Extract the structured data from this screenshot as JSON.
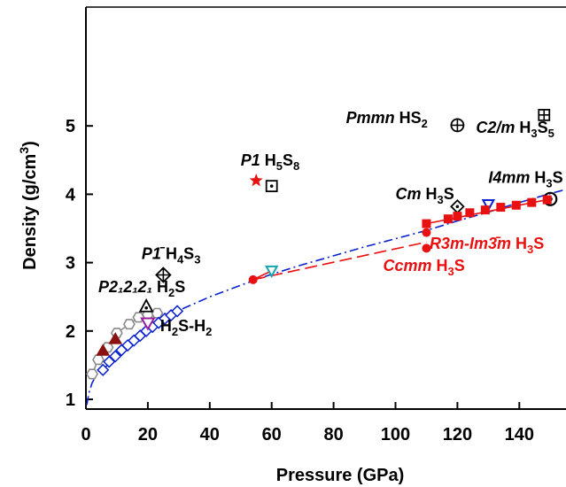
{
  "chart_data": {
    "type": "scatter",
    "title": "",
    "xlabel": "Pressure (GPa)",
    "ylabel_main": "Density (g/cm",
    "ylabel_sup": "3",
    "ylabel_close": ")",
    "xlim": [
      0,
      155
    ],
    "ylim": [
      0.9,
      5.35
    ],
    "x_ticks": [
      0,
      20,
      40,
      60,
      80,
      100,
      120,
      140
    ],
    "y_ticks": [
      1,
      2,
      3,
      4,
      5
    ],
    "grid": false,
    "legend": "none",
    "series": [
      {
        "name": "",
        "marker": "hexagon",
        "color": "#8a8a8a",
        "points": [
          [
            2,
            1.37
          ],
          [
            4,
            1.58
          ],
          [
            7,
            1.76
          ],
          [
            10,
            1.97
          ],
          [
            14,
            2.1
          ],
          [
            17,
            2.2
          ],
          [
            20,
            2.24
          ],
          [
            23,
            2.26
          ]
        ]
      },
      {
        "name": "",
        "marker": "diamond",
        "color": "#0a22d0",
        "points": [
          [
            5.5,
            1.43
          ],
          [
            7.5,
            1.55
          ],
          [
            9.5,
            1.63
          ],
          [
            11.5,
            1.72
          ],
          [
            13.5,
            1.79
          ],
          [
            15.5,
            1.86
          ],
          [
            17.5,
            1.93
          ],
          [
            19.5,
            2.0
          ],
          [
            21.5,
            2.06
          ],
          [
            23.5,
            2.12
          ],
          [
            25.5,
            2.18
          ],
          [
            27.5,
            2.23
          ],
          [
            29.5,
            2.29
          ]
        ]
      },
      {
        "name": "",
        "marker": "triangle",
        "color": "#8b1010",
        "points": [
          [
            5.5,
            1.71
          ],
          [
            9.5,
            1.88
          ]
        ]
      },
      {
        "name": "",
        "marker": "triangle-down",
        "color": "#9a1aa0",
        "points": [
          [
            20,
            2.12
          ]
        ]
      },
      {
        "name": "",
        "marker": "triangle-dot",
        "color": "#000000",
        "points": [
          [
            19.5,
            2.35
          ]
        ]
      },
      {
        "name": "",
        "marker": "diamond-plus",
        "color": "#000000",
        "points": [
          [
            25,
            2.82
          ]
        ]
      },
      {
        "name": "",
        "marker": "star",
        "color": "#e81010",
        "points": [
          [
            55,
            4.2
          ]
        ]
      },
      {
        "name": "",
        "marker": "square-dot",
        "color": "#000000",
        "points": [
          [
            60,
            4.12
          ]
        ]
      },
      {
        "name": "",
        "marker": "circle-plus",
        "color": "#000000",
        "points": [
          [
            120,
            5.01
          ]
        ]
      },
      {
        "name": "",
        "marker": "square-plus",
        "color": "#000000",
        "points": [
          [
            148,
            5.16
          ]
        ]
      },
      {
        "name": "",
        "marker": "diamond-dot",
        "color": "#000000",
        "points": [
          [
            120,
            3.82
          ]
        ]
      },
      {
        "name": "",
        "marker": "triangle-down-open",
        "color": "#0a22d0",
        "points": [
          [
            130,
            3.85
          ]
        ]
      },
      {
        "name": "",
        "marker": "circle-dot",
        "color": "#000000",
        "points": [
          [
            150,
            3.93
          ]
        ]
      },
      {
        "name": "",
        "marker": "triangle-down-open",
        "color": "#13a5b0",
        "points": [
          [
            60,
            2.88
          ]
        ]
      },
      {
        "name": "",
        "marker": "square",
        "color": "#e81010",
        "points": [
          [
            110,
            3.57
          ],
          [
            117,
            3.64
          ],
          [
            120,
            3.68
          ],
          [
            124,
            3.73
          ],
          [
            129,
            3.77
          ],
          [
            134,
            3.81
          ],
          [
            139,
            3.84
          ],
          [
            144,
            3.88
          ],
          [
            149,
            3.92
          ]
        ]
      },
      {
        "name": "",
        "marker": "circle",
        "color": "#e81010",
        "points": [
          [
            54,
            2.75
          ],
          [
            110,
            3.44
          ],
          [
            110,
            3.21
          ]
        ]
      }
    ],
    "curves": [
      {
        "name": "",
        "style": "dash-dot",
        "color": "#0a22d0",
        "points": [
          [
            0.3,
            0.92
          ],
          [
            1,
            1.1
          ],
          [
            2,
            1.24
          ],
          [
            4,
            1.41
          ],
          [
            6,
            1.53
          ],
          [
            10,
            1.72
          ],
          [
            15,
            1.9
          ],
          [
            20,
            2.05
          ],
          [
            30,
            2.3
          ],
          [
            40,
            2.5
          ],
          [
            50,
            2.67
          ],
          [
            60,
            2.83
          ],
          [
            70,
            2.97
          ],
          [
            80,
            3.1
          ],
          [
            90,
            3.23
          ],
          [
            100,
            3.35
          ],
          [
            110,
            3.47
          ],
          [
            120,
            3.61
          ],
          [
            130,
            3.74
          ],
          [
            140,
            3.88
          ],
          [
            150,
            4.01
          ],
          [
            155,
            4.07
          ]
        ]
      },
      {
        "name": "",
        "style": "solid",
        "color": "#8a8a8a",
        "points": [
          [
            2,
            1.37
          ],
          [
            4,
            1.58
          ],
          [
            7,
            1.76
          ],
          [
            10,
            1.97
          ],
          [
            14,
            2.1
          ],
          [
            17,
            2.2
          ],
          [
            20,
            2.24
          ],
          [
            23,
            2.26
          ]
        ]
      },
      {
        "name": "",
        "style": "solid",
        "color": "#0a22d0",
        "points": [
          [
            5.5,
            1.43
          ],
          [
            9.5,
            1.63
          ],
          [
            13.5,
            1.79
          ],
          [
            17.5,
            1.93
          ],
          [
            21.5,
            2.06
          ],
          [
            25.5,
            2.18
          ],
          [
            29.5,
            2.29
          ]
        ]
      },
      {
        "name": "",
        "style": "dash",
        "color": "#e81010",
        "points": [
          [
            54,
            2.75
          ],
          [
            110,
            3.3
          ]
        ]
      },
      {
        "name": "",
        "style": "solid",
        "color": "#e81010",
        "points": [
          [
            54,
            2.75
          ],
          [
            60,
            2.88
          ]
        ]
      },
      {
        "name": "",
        "style": "solid",
        "color": "#e81010",
        "points": [
          [
            110,
            3.57
          ],
          [
            150,
            3.93
          ]
        ]
      }
    ],
    "annotations": [
      {
        "id": "p1-h4s3",
        "italic": "P1̄",
        "plain": " H",
        "sub1": "4",
        "mid": "S",
        "sub2": "3",
        "color": "#000000",
        "x": 18,
        "y": 3.05
      },
      {
        "id": "p212121-h2s",
        "italic": "P2₁2₁2₁",
        "plain": " H",
        "sub1": "2",
        "mid": "S",
        "sub2": "",
        "color": "#000000",
        "x": 4,
        "y": 2.57
      },
      {
        "id": "h2s-h2",
        "italic": "",
        "plain": "H",
        "sub1": "2",
        "mid": "S-H",
        "sub2": "2",
        "color": "#000000",
        "x": 24,
        "y": 2.0
      },
      {
        "id": "p1-h5s8",
        "italic": "P1",
        "plain": " H",
        "sub1": "5",
        "mid": "S",
        "sub2": "8",
        "color": "#000000",
        "x": 50,
        "y": 4.42
      },
      {
        "id": "pmmn-hs2",
        "italic": "Pmmn",
        "plain": " HS",
        "sub1": "",
        "mid": "",
        "sub2": "2",
        "color": "#000000",
        "x": 84,
        "y": 5.04
      },
      {
        "id": "c2m-h3s5",
        "italic": "C2/m",
        "plain": " H",
        "sub1": "3",
        "mid": "S",
        "sub2": "5",
        "color": "#000000",
        "x": 126,
        "y": 4.9
      },
      {
        "id": "i4mm-h3s",
        "italic": "I4mm",
        "plain": " H",
        "sub1": "3",
        "mid": "S",
        "sub2": "",
        "color": "#000000",
        "x": 130,
        "y": 4.17
      },
      {
        "id": "cm-h3s",
        "italic": "Cm",
        "plain": " H",
        "sub1": "3",
        "mid": "S",
        "sub2": "",
        "color": "#000000",
        "x": 100,
        "y": 3.93
      },
      {
        "id": "r3m-h3s",
        "italic": "R3m-Im3̄m",
        "plain": " H",
        "sub1": "3",
        "mid": "S",
        "sub2": "",
        "color": "#e81010",
        "x": 111,
        "y": 3.2
      },
      {
        "id": "ccmm-h3s",
        "italic": "Ccmm",
        "plain": " H",
        "sub1": "3",
        "mid": "S",
        "sub2": "",
        "color": "#e81010",
        "x": 96,
        "y": 2.88
      }
    ]
  }
}
